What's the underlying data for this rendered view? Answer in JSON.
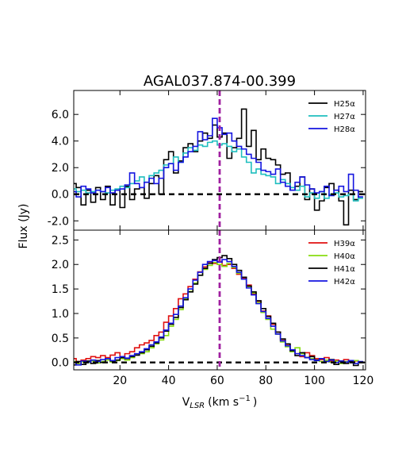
{
  "title": "AGAL037.874-00.399",
  "ylabel": "Flux (Jy)",
  "xlabel_main": "V",
  "xlabel_sub": "LSR",
  "xlabel_unit": "(km s",
  "xlabel_exp": "−1",
  "xlabel_close": ")",
  "chart_data": [
    {
      "type": "line",
      "panel": "top",
      "xlim": [
        1,
        121
      ],
      "ylim": [
        -2.7,
        7.8
      ],
      "x_ticks": [
        20,
        40,
        60,
        80,
        100,
        120
      ],
      "y_ticks": [
        -2.0,
        0.0,
        2.0,
        4.0,
        6.0
      ],
      "y_tick_labels": [
        "-2.0",
        "0.0",
        "2.0",
        "4.0",
        "6.0"
      ],
      "legend_position": "top-right",
      "reference_line": {
        "x": 61,
        "color": "#a020a0",
        "style": "dashed"
      },
      "baseline": {
        "y": 0,
        "color": "#000000",
        "style": "dashed"
      },
      "series": [
        {
          "name": "H25α",
          "color": "#000000",
          "x": [
            1,
            3,
            5,
            7,
            9,
            11,
            13,
            15,
            17,
            19,
            21,
            23,
            25,
            27,
            29,
            31,
            33,
            35,
            37,
            39,
            41,
            43,
            45,
            47,
            49,
            51,
            53,
            55,
            57,
            59,
            61,
            63,
            65,
            67,
            69,
            71,
            73,
            75,
            77,
            79,
            81,
            83,
            85,
            87,
            89,
            91,
            93,
            95,
            97,
            99,
            101,
            103,
            105,
            107,
            109,
            111,
            113,
            115,
            117,
            119
          ],
          "values": [
            0.8,
            0.5,
            -0.8,
            0.3,
            -0.6,
            0.5,
            -0.4,
            0.6,
            -0.8,
            0.3,
            -1.0,
            0.6,
            -0.4,
            0.4,
            0.5,
            -0.3,
            0.8,
            1.4,
            0.0,
            2.6,
            3.2,
            1.6,
            2.5,
            3.5,
            3.8,
            3.2,
            4.0,
            4.6,
            4.2,
            5.2,
            4.3,
            4.6,
            2.7,
            3.5,
            4.2,
            6.4,
            3.6,
            4.8,
            2.6,
            3.4,
            2.7,
            2.6,
            2.2,
            1.5,
            1.6,
            0.3,
            0.6,
            1.3,
            -0.4,
            0.4,
            -1.2,
            -0.5,
            0.5,
            0.8,
            0.3,
            -0.5,
            -2.3,
            0.3,
            -0.4,
            0.2
          ]
        },
        {
          "name": "H27α",
          "color": "#1fbfbf",
          "x": [
            1,
            3,
            5,
            7,
            9,
            11,
            13,
            15,
            17,
            19,
            21,
            23,
            25,
            27,
            29,
            31,
            33,
            35,
            37,
            39,
            41,
            43,
            45,
            47,
            49,
            51,
            53,
            55,
            57,
            59,
            61,
            63,
            65,
            67,
            69,
            71,
            73,
            75,
            77,
            79,
            81,
            83,
            85,
            87,
            89,
            91,
            93,
            95,
            97,
            99,
            101,
            103,
            105,
            107,
            109,
            111,
            113,
            115,
            117,
            119
          ],
          "values": [
            0.4,
            0.2,
            0.3,
            0.1,
            0.2,
            0.3,
            0.2,
            0.1,
            0.3,
            0.4,
            0.6,
            0.5,
            0.8,
            1.0,
            1.3,
            0.9,
            1.4,
            1.6,
            1.8,
            2.2,
            2.3,
            2.8,
            2.4,
            3.1,
            3.5,
            3.3,
            3.7,
            3.6,
            3.9,
            4.0,
            3.7,
            3.8,
            3.6,
            3.2,
            3.4,
            2.8,
            2.4,
            1.6,
            1.9,
            1.5,
            1.4,
            1.3,
            0.8,
            1.1,
            0.8,
            0.5,
            0.3,
            0.6,
            -0.2,
            0.1,
            -0.3,
            0.2,
            -0.3,
            0.0,
            0.1,
            -0.2,
            -0.1,
            0.0,
            -0.5,
            -0.3
          ]
        },
        {
          "name": "H28α",
          "color": "#1515e0",
          "x": [
            1,
            3,
            5,
            7,
            9,
            11,
            13,
            15,
            17,
            19,
            21,
            23,
            25,
            27,
            29,
            31,
            33,
            35,
            37,
            39,
            41,
            43,
            45,
            47,
            49,
            51,
            53,
            55,
            57,
            59,
            61,
            63,
            65,
            67,
            69,
            71,
            73,
            75,
            77,
            79,
            81,
            83,
            85,
            87,
            89,
            91,
            93,
            95,
            97,
            99,
            101,
            103,
            105,
            107,
            109,
            111,
            113,
            115,
            117,
            119
          ],
          "values": [
            0.2,
            -0.2,
            0.6,
            0.4,
            0.1,
            0.3,
            0.2,
            0.5,
            0.1,
            0.3,
            0.4,
            0.7,
            1.6,
            0.8,
            0.5,
            0.9,
            1.2,
            0.8,
            1.2,
            2.0,
            2.3,
            1.8,
            2.4,
            2.8,
            3.2,
            3.6,
            4.7,
            4.1,
            4.4,
            5.7,
            5.0,
            4.5,
            4.6,
            4.0,
            3.6,
            3.4,
            3.0,
            2.7,
            2.4,
            1.8,
            1.7,
            1.5,
            1.9,
            0.9,
            0.6,
            0.3,
            0.9,
            1.3,
            0.7,
            0.4,
            0.1,
            0.2,
            0.6,
            -0.1,
            0.3,
            0.6,
            0.2,
            1.5,
            0.3,
            -0.2
          ]
        }
      ]
    },
    {
      "type": "line",
      "panel": "bottom",
      "xlim": [
        1,
        121
      ],
      "ylim": [
        -0.15,
        2.7
      ],
      "x_ticks": [
        20,
        40,
        60,
        80,
        100,
        120
      ],
      "y_ticks": [
        0.0,
        0.5,
        1.0,
        1.5,
        2.0,
        2.5
      ],
      "y_tick_labels": [
        "0.0",
        "0.5",
        "1.0",
        "1.5",
        "2.0",
        "2.5"
      ],
      "legend_position": "top-right",
      "reference_line": {
        "x": 61,
        "color": "#a020a0",
        "style": "dashed"
      },
      "baseline": {
        "y": 0,
        "color": "#000000",
        "style": "dashed"
      },
      "series": [
        {
          "name": "H39α",
          "color": "#e01010",
          "x": [
            1,
            3,
            5,
            7,
            9,
            11,
            13,
            15,
            17,
            19,
            21,
            23,
            25,
            27,
            29,
            31,
            33,
            35,
            37,
            39,
            41,
            43,
            45,
            47,
            49,
            51,
            53,
            55,
            57,
            59,
            61,
            63,
            65,
            67,
            69,
            71,
            73,
            75,
            77,
            79,
            81,
            83,
            85,
            87,
            89,
            91,
            93,
            95,
            97,
            99,
            101,
            103,
            105,
            107,
            109,
            111,
            113,
            115,
            117,
            119
          ],
          "values": [
            0.08,
            0.02,
            0.05,
            0.08,
            0.12,
            0.1,
            0.14,
            0.1,
            0.15,
            0.2,
            0.12,
            0.18,
            0.22,
            0.3,
            0.36,
            0.4,
            0.45,
            0.55,
            0.62,
            0.82,
            0.95,
            1.1,
            1.3,
            1.4,
            1.55,
            1.7,
            1.85,
            1.95,
            2.05,
            2.02,
            2.06,
            1.98,
            2.0,
            1.92,
            1.8,
            1.72,
            1.58,
            1.4,
            1.25,
            1.05,
            0.95,
            0.78,
            0.62,
            0.45,
            0.35,
            0.25,
            0.18,
            0.12,
            0.2,
            0.14,
            0.08,
            0.06,
            0.1,
            0.03,
            0.05,
            0.02,
            0.06,
            0.0,
            0.03,
            0.01
          ]
        },
        {
          "name": "H40α",
          "color": "#88dd10",
          "x": [
            1,
            3,
            5,
            7,
            9,
            11,
            13,
            15,
            17,
            19,
            21,
            23,
            25,
            27,
            29,
            31,
            33,
            35,
            37,
            39,
            41,
            43,
            45,
            47,
            49,
            51,
            53,
            55,
            57,
            59,
            61,
            63,
            65,
            67,
            69,
            71,
            73,
            75,
            77,
            79,
            81,
            83,
            85,
            87,
            89,
            91,
            93,
            95,
            97,
            99,
            101,
            103,
            105,
            107,
            109,
            111,
            113,
            115,
            117,
            119
          ],
          "values": [
            0.02,
            -0.02,
            0.01,
            0.0,
            0.03,
            -0.01,
            0.02,
            0.05,
            0.01,
            0.04,
            0.08,
            0.05,
            0.1,
            0.15,
            0.18,
            0.22,
            0.3,
            0.38,
            0.46,
            0.55,
            0.74,
            0.88,
            1.08,
            1.3,
            1.45,
            1.62,
            1.78,
            1.9,
            1.98,
            2.04,
            2.0,
            1.96,
            2.02,
            1.94,
            1.82,
            1.7,
            1.55,
            1.42,
            1.22,
            1.02,
            0.88,
            0.68,
            0.58,
            0.42,
            0.32,
            0.22,
            0.3,
            0.18,
            0.1,
            0.08,
            0.04,
            0.02,
            0.05,
            0.01,
            0.03,
            -0.02,
            0.02,
            0.0,
            0.04,
            0.01
          ]
        },
        {
          "name": "H41α",
          "color": "#000000",
          "x": [
            1,
            3,
            5,
            7,
            9,
            11,
            13,
            15,
            17,
            19,
            21,
            23,
            25,
            27,
            29,
            31,
            33,
            35,
            37,
            39,
            41,
            43,
            45,
            47,
            49,
            51,
            53,
            55,
            57,
            59,
            61,
            63,
            65,
            67,
            69,
            71,
            73,
            75,
            77,
            79,
            81,
            83,
            85,
            87,
            89,
            91,
            93,
            95,
            97,
            99,
            101,
            103,
            105,
            107,
            109,
            111,
            113,
            115,
            117,
            119
          ],
          "values": [
            -0.05,
            0.02,
            -0.04,
            0.03,
            -0.02,
            0.04,
            0.0,
            0.08,
            0.03,
            0.05,
            0.1,
            0.08,
            0.12,
            0.15,
            0.2,
            0.26,
            0.33,
            0.4,
            0.5,
            0.64,
            0.78,
            0.92,
            1.12,
            1.28,
            1.44,
            1.6,
            1.78,
            1.92,
            2.02,
            2.1,
            2.14,
            2.18,
            2.12,
            2.0,
            1.88,
            1.74,
            1.56,
            1.44,
            1.26,
            1.1,
            0.94,
            0.8,
            0.62,
            0.48,
            0.38,
            0.24,
            0.14,
            0.2,
            0.1,
            0.12,
            0.05,
            0.08,
            0.02,
            0.06,
            -0.04,
            0.03,
            -0.02,
            0.02,
            -0.06,
            0.0
          ]
        },
        {
          "name": "H42α",
          "color": "#1515e0",
          "x": [
            1,
            3,
            5,
            7,
            9,
            11,
            13,
            15,
            17,
            19,
            21,
            23,
            25,
            27,
            29,
            31,
            33,
            35,
            37,
            39,
            41,
            43,
            45,
            47,
            49,
            51,
            53,
            55,
            57,
            59,
            61,
            63,
            65,
            67,
            69,
            71,
            73,
            75,
            77,
            79,
            81,
            83,
            85,
            87,
            89,
            91,
            93,
            95,
            97,
            99,
            101,
            103,
            105,
            107,
            109,
            111,
            113,
            115,
            117,
            119
          ],
          "values": [
            0.0,
            -0.05,
            0.03,
            0.01,
            0.05,
            0.02,
            0.06,
            0.08,
            0.04,
            0.1,
            0.12,
            0.09,
            0.14,
            0.18,
            0.22,
            0.28,
            0.36,
            0.42,
            0.52,
            0.66,
            0.8,
            0.98,
            1.15,
            1.32,
            1.5,
            1.68,
            1.84,
            2.0,
            2.06,
            2.08,
            2.05,
            2.1,
            2.06,
            1.96,
            1.84,
            1.7,
            1.52,
            1.38,
            1.2,
            1.04,
            0.9,
            0.74,
            0.58,
            0.44,
            0.34,
            0.26,
            0.18,
            0.14,
            0.1,
            0.06,
            0.04,
            0.08,
            0.02,
            0.05,
            0.0,
            0.03,
            0.01,
            0.04,
            -0.02,
            0.02
          ]
        }
      ]
    }
  ]
}
